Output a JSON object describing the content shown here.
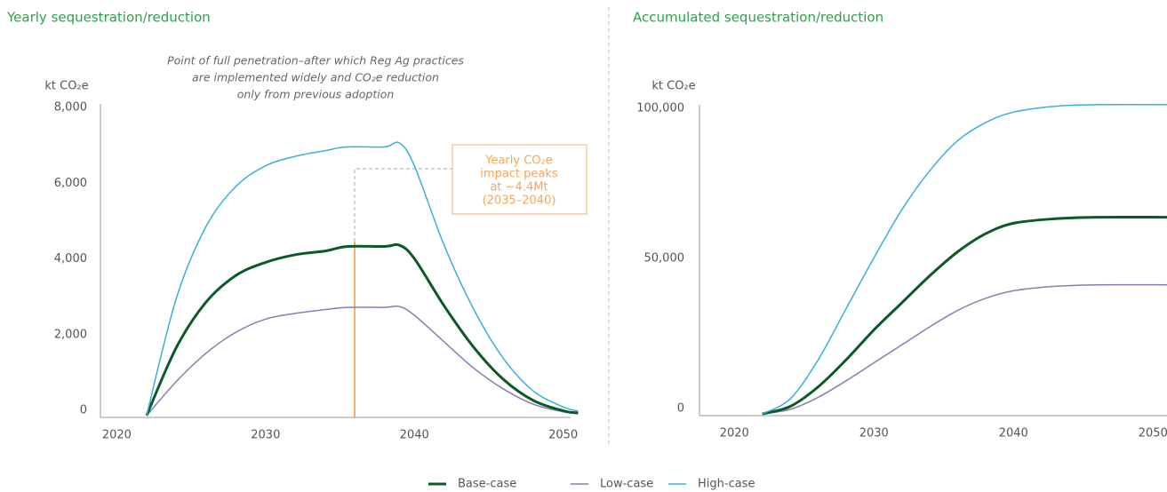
{
  "chart_data": [
    {
      "type": "line",
      "title": "Yearly sequestration/reduction",
      "ylabel": "kt CO₂e",
      "annotation": [
        "Point of full penetration–after which Reg Ag practices",
        "are implemented widely and CO₂e reduction",
        "only from previous adoption"
      ],
      "callout": [
        "Yearly CO₂e",
        "impact peaks",
        "at ~4.4Mt",
        "(2035–2040)"
      ],
      "x": [
        2022,
        2024,
        2026,
        2028,
        2030,
        2032,
        2034,
        2035.5,
        2038,
        2039,
        2040,
        2042,
        2044,
        2046,
        2048,
        2050,
        2051
      ],
      "xlim": [
        2018.9,
        2050.5
      ],
      "xticks": [
        2020,
        2030,
        2040,
        2050
      ],
      "ylim": [
        0,
        8000
      ],
      "yticks": [
        0,
        {
          "value": 2000,
          "label": "2,000"
        },
        {
          "value": 4000,
          "label": "4,000"
        },
        {
          "value": 6000,
          "label": "6,000"
        },
        {
          "value": 8000,
          "label": "8,000"
        }
      ],
      "series": [
        {
          "name": "Base-case",
          "color": "#0b5a26",
          "values": [
            0,
            1800,
            3000,
            3700,
            4050,
            4250,
            4350,
            4470,
            4470,
            4500,
            4150,
            2900,
            1800,
            950,
            400,
            130,
            70
          ]
        },
        {
          "name": "Low-case",
          "color": "#8a7cb3",
          "values": [
            0,
            900,
            1650,
            2200,
            2550,
            2700,
            2800,
            2860,
            2860,
            2880,
            2650,
            1950,
            1250,
            700,
            300,
            100,
            50
          ]
        },
        {
          "name": "High-case",
          "color": "#3aafd9",
          "values": [
            0,
            3100,
            5000,
            6050,
            6600,
            6850,
            7000,
            7100,
            7100,
            7200,
            6600,
            4500,
            2800,
            1500,
            650,
            230,
            120
          ]
        }
      ]
    },
    {
      "type": "line",
      "title": "Accumulated sequestration/reduction",
      "ylabel": "kt CO₂e",
      "x": [
        2022,
        2024,
        2026,
        2028,
        2030,
        2032,
        2034,
        2036,
        2038,
        2040,
        2043,
        2046,
        2051
      ],
      "xlim": [
        2017.5,
        2051
      ],
      "xticks": [
        2020,
        2030,
        2040,
        2050
      ],
      "ylim": [
        0,
        100000
      ],
      "yticks": [
        0,
        {
          "value": 50000,
          "label": "50,000"
        },
        {
          "value": 100000,
          "label": "100,000"
        }
      ],
      "series": [
        {
          "color": "#0b5a26",
          "values": [
            0,
            2500,
            9000,
            18000,
            28000,
            37000,
            46000,
            54000,
            60000,
            63500,
            65000,
            65500,
            65500
          ]
        },
        {
          "color": "#8a7cb3",
          "values": [
            0,
            1500,
            5500,
            11000,
            17000,
            23000,
            29000,
            34500,
            38500,
            41000,
            42500,
            43000,
            43000
          ]
        },
        {
          "color": "#3aafd9",
          "values": [
            0,
            5000,
            18000,
            35000,
            52000,
            68000,
            81000,
            91000,
            97000,
            100500,
            102500,
            103000,
            103000
          ]
        }
      ]
    }
  ]
}
